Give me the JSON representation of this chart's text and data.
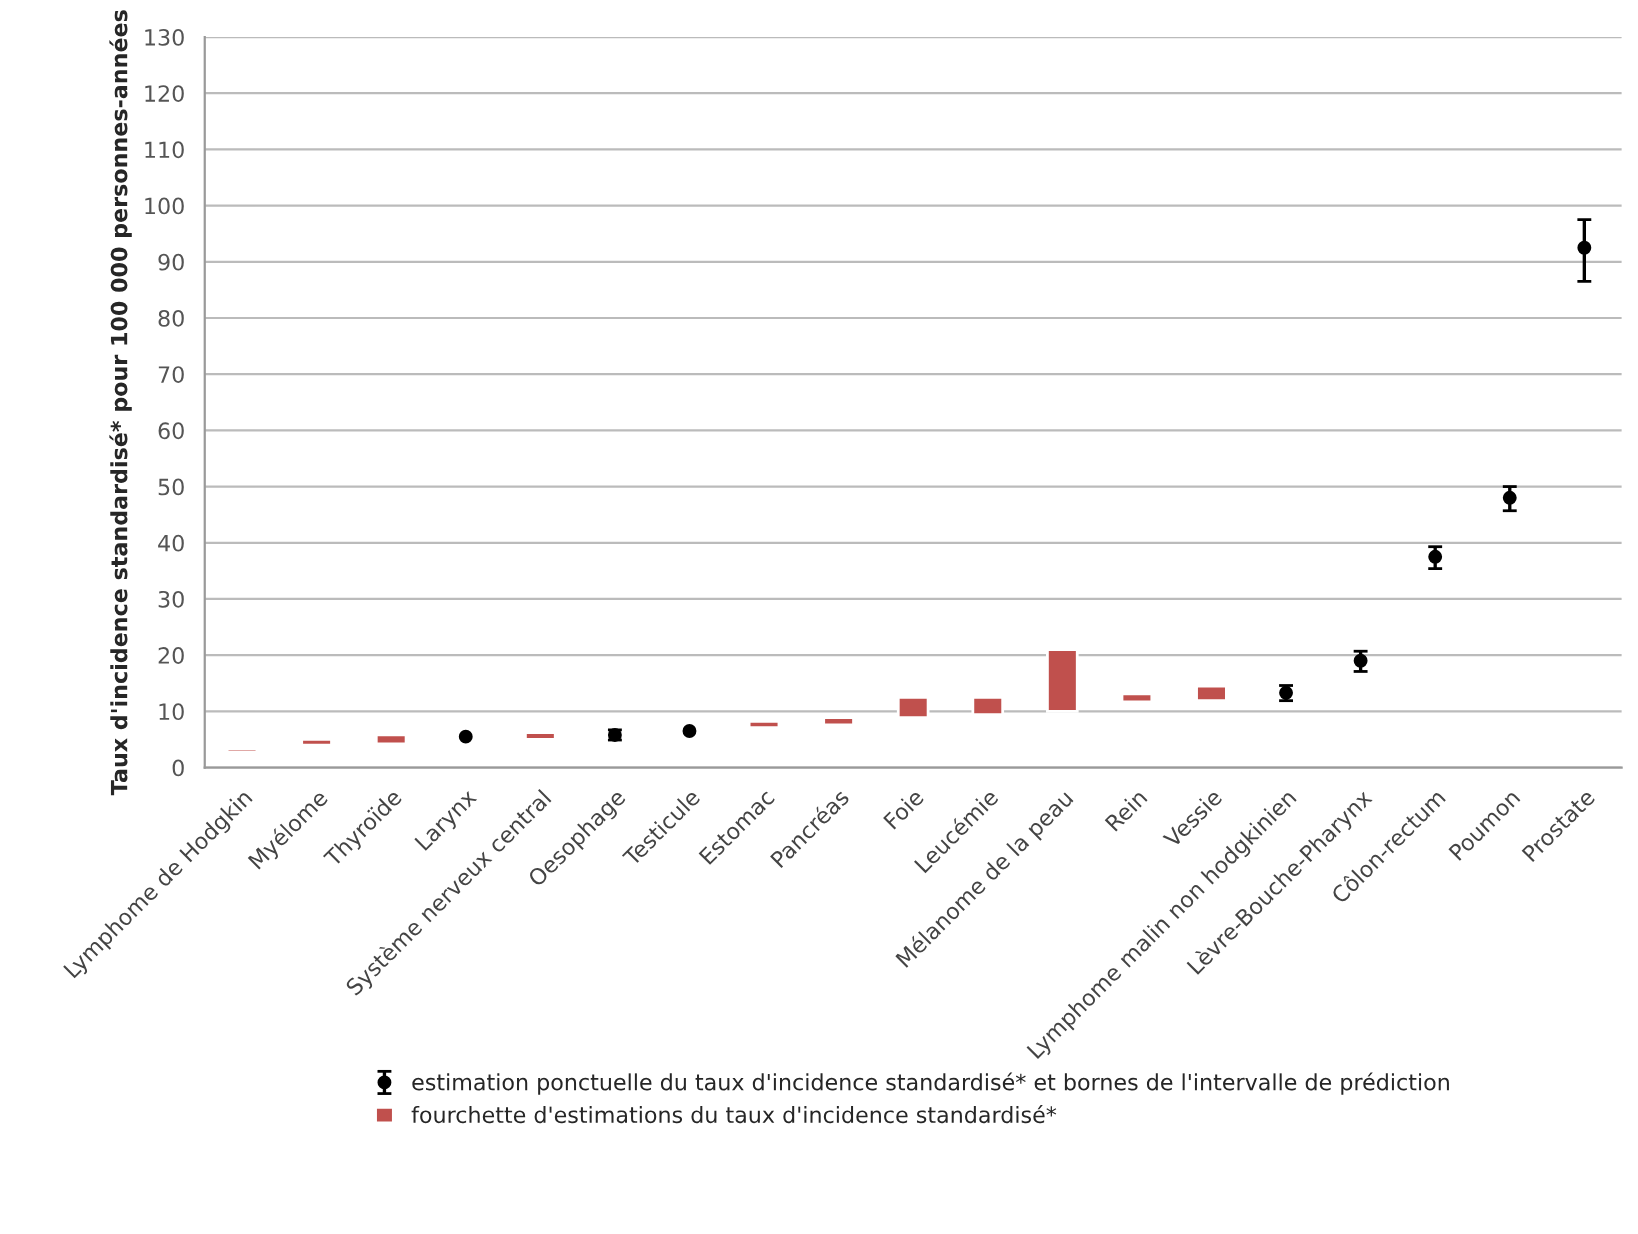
{
  "chart_data": {
    "type": "bar",
    "ylabel": "Taux d'incidence standardisé* pour 100 000 personnes-années",
    "categories": [
      "Lymphome de Hodgkin",
      "Myélome",
      "Thyroïde",
      "Larynx",
      "Système nerveux central",
      "Oesophage",
      "Testicule",
      "Estomac",
      "Pancréas",
      "Foie",
      "Leucémie",
      "Mélanome de la peau",
      "Rein",
      "Vessie",
      "Lymphome malin non hodgkinien",
      "Lèvre-Bouche-Pharynx",
      "Côlon-rectum",
      "Poumon",
      "Prostate"
    ],
    "series": [
      {
        "name": "estimation ponctuelle du taux d'incidence standardisé* et bornes de l'intervalle de prédiction",
        "type": "scatter",
        "color": "#000000",
        "marker": "circle",
        "values": [
          null,
          null,
          null,
          5.5,
          null,
          5.8,
          6.5,
          null,
          null,
          null,
          null,
          null,
          null,
          null,
          13.3,
          19.0,
          37.5,
          48.0,
          92.5
        ],
        "errors": [
          null,
          null,
          null,
          null,
          null,
          [
            4.9,
            6.7
          ],
          null,
          null,
          null,
          null,
          null,
          null,
          null,
          null,
          [
            11.9,
            14.6
          ],
          [
            17.1,
            20.7
          ],
          [
            35.4,
            39.3
          ],
          [
            45.7,
            50.0
          ],
          [
            86.5,
            97.5
          ]
        ]
      },
      {
        "name": "fourchette d'estimations du taux d'incidence standardisé*",
        "color": "#c0504d",
        "base": [
          2.7,
          4.0,
          4.2,
          null,
          5.0,
          null,
          null,
          7.1,
          7.6,
          8.9,
          9.4,
          10.0,
          11.7,
          11.9,
          null,
          null,
          null,
          null,
          null
        ],
        "values": [
          0.6,
          1.0,
          1.6,
          null,
          1.2,
          null,
          null,
          1.1,
          1.3,
          3.6,
          3.1,
          11.0,
          1.4,
          2.6,
          null,
          null,
          null,
          null,
          null
        ]
      }
    ],
    "ylim": [
      0,
      130
    ],
    "yticks": [
      0,
      10,
      20,
      30,
      40,
      50,
      60,
      70,
      80,
      90,
      100,
      110,
      120,
      130
    ],
    "grid": "y",
    "legend": "bottom"
  }
}
